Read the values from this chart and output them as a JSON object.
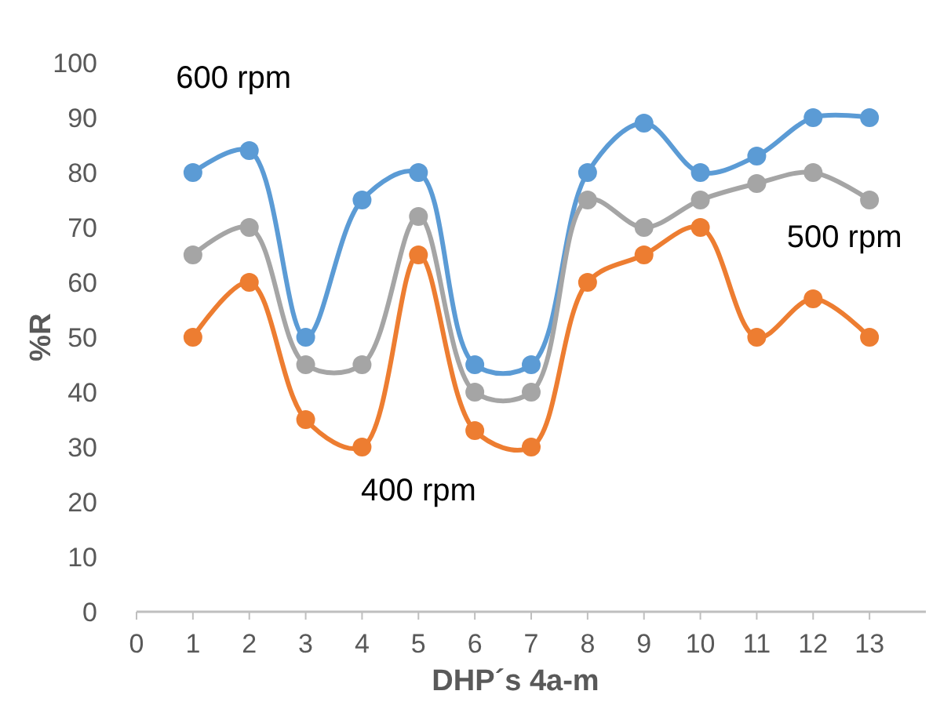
{
  "chart_data": {
    "type": "line",
    "xlabel": "DHP´s 4a-m",
    "ylabel": "%R",
    "x": [
      1,
      2,
      3,
      4,
      5,
      6,
      7,
      8,
      9,
      10,
      11,
      12,
      13
    ],
    "xlim": [
      0,
      14
    ],
    "xticks": [
      0,
      1,
      2,
      3,
      4,
      5,
      6,
      7,
      8,
      9,
      10,
      11,
      12,
      13
    ],
    "ylim": [
      0,
      100
    ],
    "yticks": [
      0,
      10,
      20,
      30,
      40,
      50,
      60,
      70,
      80,
      90,
      100
    ],
    "marker": "circle",
    "grid": false,
    "series": [
      {
        "name": "600 rpm",
        "color": "#5b9bd5",
        "values": [
          80,
          84,
          50,
          75,
          80,
          45,
          45,
          80,
          89,
          80,
          83,
          90,
          90
        ]
      },
      {
        "name": "500 rpm",
        "color": "#a5a5a5",
        "values": [
          65,
          70,
          45,
          45,
          72,
          40,
          40,
          75,
          70,
          75,
          78,
          80,
          75
        ]
      },
      {
        "name": "400 rpm",
        "color": "#ed7d31",
        "values": [
          50,
          60,
          35,
          30,
          65,
          33,
          30,
          60,
          65,
          70,
          50,
          57,
          50
        ]
      }
    ]
  }
}
